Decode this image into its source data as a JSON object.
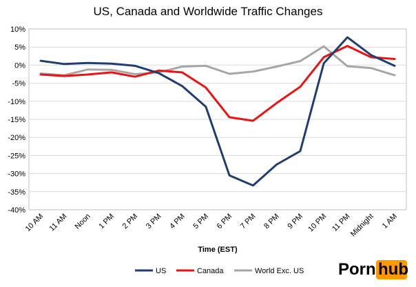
{
  "chart_data": {
    "type": "line",
    "title": "US, Canada and Worldwide Traffic Changes",
    "xlabel": "Time (EST)",
    "ylabel": "",
    "ylim": [
      -40,
      10
    ],
    "yticks": [
      "10%",
      "5%",
      "0%",
      "-5%",
      "-10%",
      "-15%",
      "-20%",
      "-25%",
      "-30%",
      "-35%",
      "-40%"
    ],
    "categories": [
      "10 AM",
      "11 AM",
      "Noon",
      "1 PM",
      "2 PM",
      "3 PM",
      "4 PM",
      "5 PM",
      "6 PM",
      "7 PM",
      "8 PM",
      "9 PM",
      "10 PM",
      "11 PM",
      "Midnight",
      "1 AM"
    ],
    "grid": true,
    "legend_position": "bottom",
    "series": [
      {
        "name": "US",
        "color": "#1f3d6e",
        "values": [
          1.2,
          0.3,
          0.6,
          0.4,
          -0.2,
          -2.2,
          -5.8,
          -11.5,
          -30.5,
          -33.3,
          -27.5,
          -23.8,
          0.5,
          7.7,
          2.8,
          -0.2
        ]
      },
      {
        "name": "Canada",
        "color": "#ee1111",
        "values": [
          -2.6,
          -3.0,
          -2.6,
          -2.0,
          -3.2,
          -1.5,
          -2.0,
          -6.2,
          -14.4,
          -15.4,
          -10.5,
          -6.0,
          2.2,
          5.3,
          2.2,
          1.7
        ]
      },
      {
        "name": "World Exc. US",
        "color": "#a6a6a6",
        "values": [
          -2.3,
          -2.8,
          -1.2,
          -1.3,
          -2.5,
          -2.0,
          -0.4,
          -0.2,
          -2.4,
          -1.8,
          -0.4,
          1.1,
          5.2,
          -0.3,
          -0.8,
          -2.8
        ]
      }
    ]
  },
  "logo": {
    "part1": "Porn",
    "part2": "hub"
  }
}
